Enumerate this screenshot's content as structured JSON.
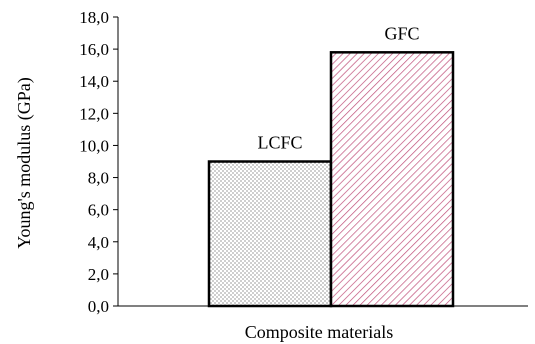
{
  "chart_data": {
    "type": "bar",
    "categories": [
      "LCFC",
      "GFC"
    ],
    "values": [
      9.0,
      15.8
    ],
    "bar_labels": [
      "LCFC",
      "GFC"
    ],
    "xlabel": "Composite materials",
    "ylabel": "Young's modulus (GPa)",
    "ylim": [
      0,
      18
    ],
    "yticks": [
      "0,0",
      "2,0",
      "4,0",
      "6,0",
      "8,0",
      "10,0",
      "12,0",
      "14,0",
      "16,0",
      "18,0"
    ],
    "grid": false,
    "legend": "none",
    "bar_fills": [
      "dotted",
      "diagonal-hatch"
    ],
    "colors": {
      "axis": "#000000",
      "bar_outline": "#000000",
      "gfc_hatch": "#c0507a",
      "lcfc_dots": "#555555"
    }
  }
}
